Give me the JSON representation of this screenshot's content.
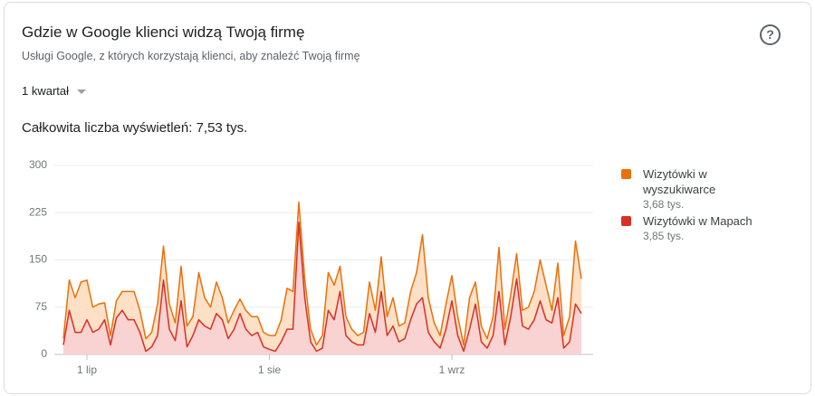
{
  "header": {
    "title": "Gdzie w Google klienci widzą Twoją firmę",
    "subtitle": "Usługi Google, z których korzystają klienci, aby znaleźć Twoją firmę",
    "period": "1 kwartał",
    "total": "Całkowita liczba wyświetleń: 7,53 tys."
  },
  "chart_data": {
    "type": "stacked_area",
    "categories": [
      null,
      null,
      null,
      null,
      "1 lip",
      null,
      null,
      null,
      null,
      null,
      null,
      null,
      null,
      null,
      null,
      null,
      null,
      null,
      null,
      null,
      null,
      null,
      null,
      null,
      null,
      null,
      null,
      null,
      null,
      null,
      null,
      null,
      null,
      null,
      null,
      "1 sie",
      null,
      null,
      null,
      null,
      null,
      null,
      null,
      null,
      null,
      null,
      null,
      null,
      null,
      null,
      null,
      null,
      null,
      null,
      null,
      null,
      null,
      null,
      null,
      null,
      null,
      null,
      null,
      null,
      null,
      null,
      "1 wrz",
      null,
      null,
      null,
      null,
      null,
      null,
      null,
      null,
      null,
      null,
      null,
      null,
      null,
      null,
      null,
      null,
      null,
      null,
      null,
      null,
      null,
      null
    ],
    "series": [
      {
        "name": "Wizytówki w wyszukiwarce",
        "total": "3,68 tys.",
        "color": "#e8710a",
        "fill": "#fde0c6",
        "values": [
          10,
          48,
          55,
          80,
          63,
          40,
          40,
          27,
          15,
          27,
          30,
          45,
          45,
          35,
          20,
          23,
          50,
          54,
          40,
          28,
          55,
          33,
          30,
          75,
          45,
          35,
          50,
          35,
          25,
          30,
          23,
          30,
          30,
          25,
          23,
          22,
          25,
          35,
          65,
          60,
          32,
          30,
          20,
          10,
          20,
          60,
          55,
          40,
          30,
          20,
          15,
          20,
          50,
          35,
          55,
          30,
          45,
          25,
          25,
          45,
          50,
          100,
          55,
          30,
          20,
          40,
          40,
          30,
          10,
          50,
          35,
          25,
          15,
          30,
          70,
          25,
          35,
          40,
          25,
          35,
          45,
          65,
          55,
          20,
          55,
          20,
          40,
          100,
          55
        ]
      },
      {
        "name": "Wizytówki w Mapach",
        "total": "3,85 tys.",
        "color": "#d93025",
        "fill": "#f9d2d2",
        "values": [
          15,
          70,
          35,
          35,
          55,
          35,
          40,
          55,
          15,
          58,
          70,
          55,
          55,
          35,
          5,
          12,
          30,
          118,
          40,
          22,
          85,
          12,
          30,
          55,
          45,
          40,
          65,
          55,
          25,
          40,
          65,
          40,
          30,
          35,
          12,
          8,
          5,
          20,
          40,
          40,
          210,
          90,
          20,
          5,
          10,
          70,
          55,
          100,
          30,
          20,
          15,
          15,
          65,
          35,
          100,
          30,
          45,
          20,
          25,
          55,
          80,
          90,
          35,
          20,
          10,
          40,
          85,
          30,
          5,
          40,
          80,
          20,
          10,
          30,
          100,
          15,
          60,
          120,
          45,
          40,
          55,
          85,
          55,
          50,
          90,
          10,
          20,
          80,
          65
        ]
      }
    ],
    "ylim": [
      0,
      300
    ],
    "yticks": [
      0,
      75,
      150,
      225,
      300
    ],
    "grid": true
  }
}
